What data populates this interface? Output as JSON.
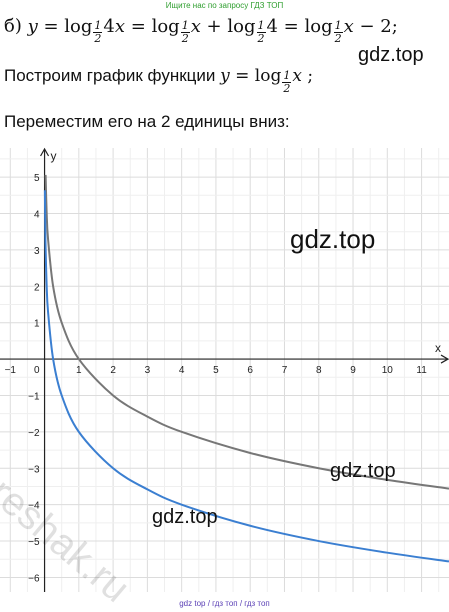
{
  "header": {
    "note": "Ищите нас по запросу ГДЗ ТОП"
  },
  "formula": {
    "label": "б)",
    "frac_num": "1",
    "frac_den": "2"
  },
  "text": {
    "line2": "Построим график функции",
    "line3": "Переместим его на 2 единицы вниз:"
  },
  "watermarks": {
    "w1": "gdz.top",
    "w2": "gdz.top",
    "w3": "gdz.top",
    "w4": "gdz.top",
    "reshak": "reshak.ru"
  },
  "footer": {
    "note": "gdz top / гдз топ / гдз топ"
  },
  "chart_data": {
    "type": "line",
    "xlabel": "x",
    "ylabel": "y",
    "xlim": [
      -1.3,
      11.8
    ],
    "ylim": [
      -6.4,
      5.8
    ],
    "x_ticks": [
      -1,
      1,
      2,
      3,
      4,
      5,
      6,
      7,
      8,
      9,
      10,
      11
    ],
    "y_ticks": [
      5,
      4,
      3,
      2,
      1,
      -1,
      -2,
      -3,
      -4,
      -5,
      -6
    ],
    "x_tick_labels": [
      "−1",
      "1",
      "2",
      "3",
      "4",
      "5",
      "6",
      "7",
      "8",
      "9",
      "10",
      "11"
    ],
    "y_tick_labels": [
      "5",
      "4",
      "3",
      "2",
      "1",
      "−1",
      "−2",
      "−3",
      "−4",
      "−5",
      "−6"
    ],
    "origin_label": "0",
    "grid": true,
    "series": [
      {
        "function": "log_{1/2} x",
        "color": "#777777",
        "x": [
          0.03,
          0.06,
          0.1,
          0.25,
          0.5,
          1,
          2,
          3,
          4,
          6,
          8,
          10,
          11.8
        ],
        "y": [
          5.06,
          4.06,
          3.32,
          2.0,
          1.0,
          0.0,
          -1.0,
          -1.58,
          -2.0,
          -2.58,
          -3.0,
          -3.32,
          -3.56
        ]
      },
      {
        "function": "log_{1/2} x - 2",
        "color": "#3b7fd1",
        "x": [
          0.01,
          0.02,
          0.03,
          0.06,
          0.1,
          0.25,
          0.5,
          1,
          2,
          3,
          4,
          6,
          8,
          10,
          11.8
        ],
        "y": [
          4.64,
          3.64,
          3.06,
          2.06,
          1.32,
          0.0,
          -1.0,
          -2.0,
          -3.0,
          -3.58,
          -4.0,
          -4.58,
          -5.0,
          -5.32,
          -5.56
        ]
      }
    ]
  }
}
